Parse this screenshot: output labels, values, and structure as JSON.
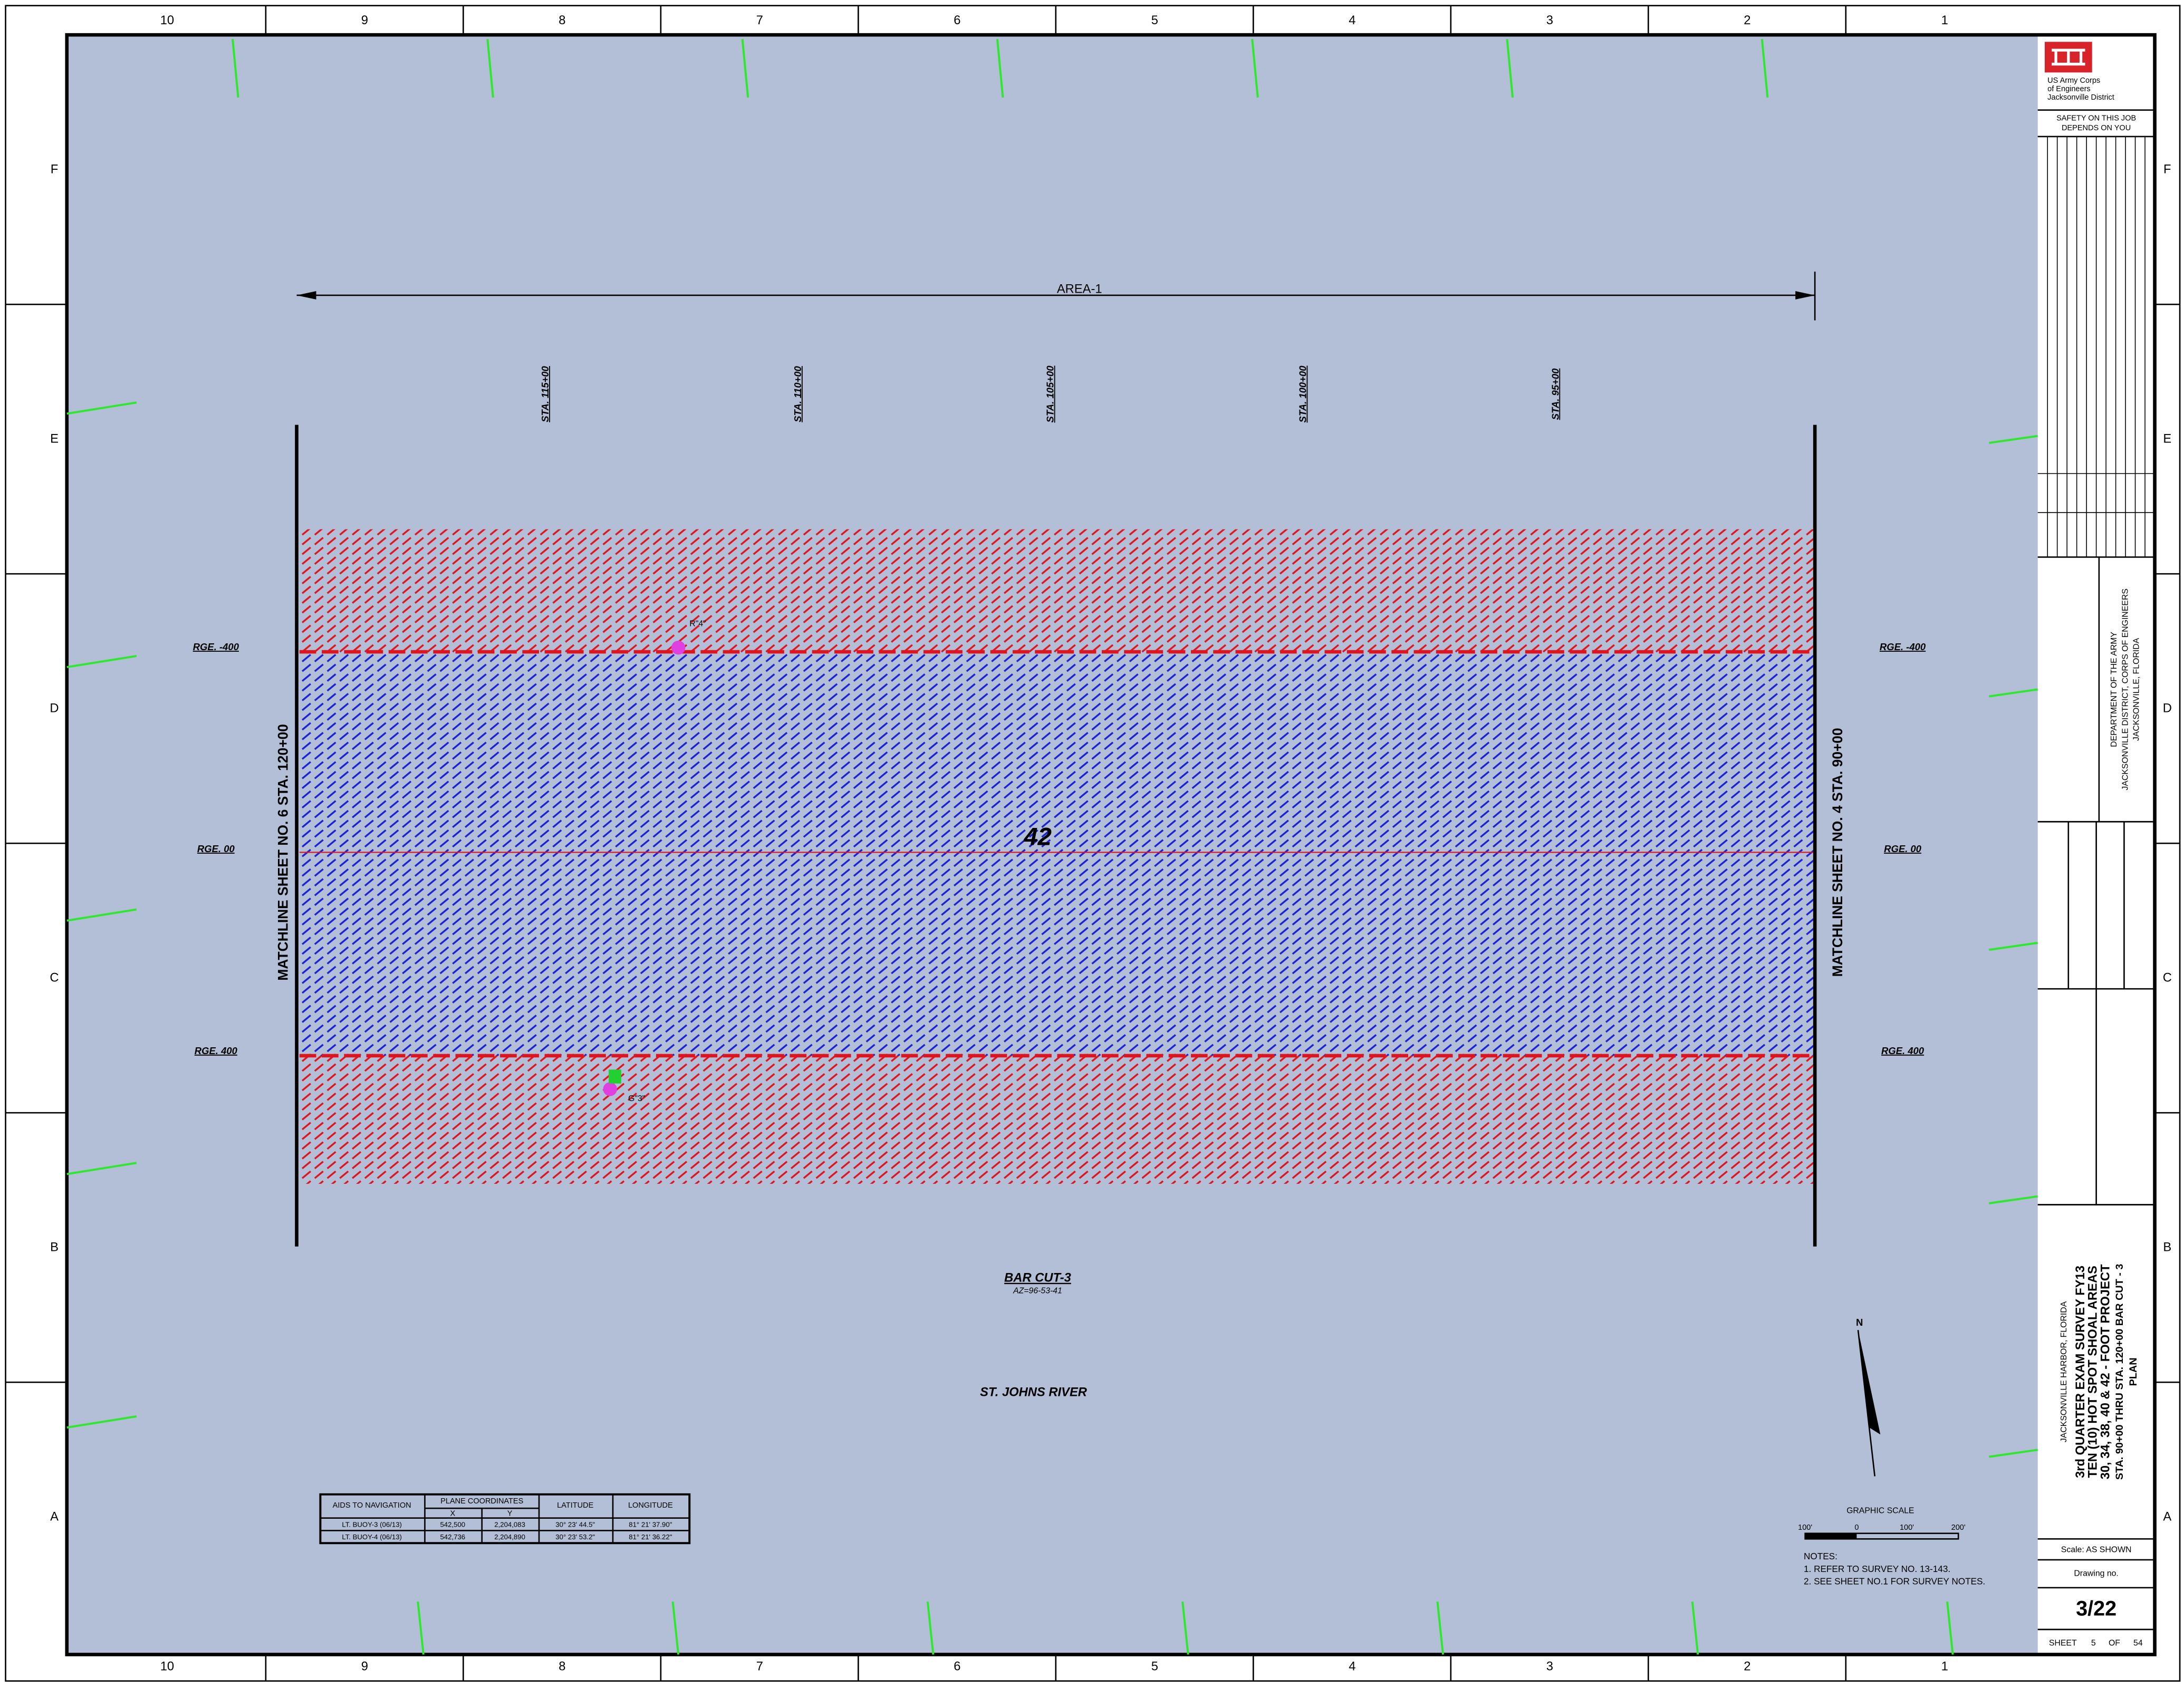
{
  "border": {
    "columns": [
      "10",
      "9",
      "8",
      "7",
      "6",
      "5",
      "4",
      "3",
      "2",
      "1"
    ],
    "rows": [
      "F",
      "E",
      "D",
      "C",
      "B",
      "A"
    ]
  },
  "plan": {
    "area": "AREA-1",
    "stations": [
      "STA. 115+00",
      "STA. 110+00",
      "STA. 105+00",
      "STA. 100+00",
      "STA. 95+00"
    ],
    "ranges": [
      "RGE. -400",
      "RGE. 00",
      "RGE. 400"
    ],
    "matchline_left": "MATCHLINE SHEET NO. 6 STA. 120+00",
    "matchline_right": "MATCHLINE SHEET NO. 4 STA. 90+00",
    "depth": "42",
    "cut": "BAR CUT-3",
    "azimuth": "AZ=96-53-41",
    "river": "ST. JOHNS RIVER",
    "buoy_red": "R\"4\"",
    "buoy_green": "G\"3\"",
    "north": "N",
    "scale_title": "GRAPHIC SCALE",
    "scale_ticks": [
      "100'",
      "0",
      "100'",
      "200'"
    ],
    "notes": [
      "NOTES:",
      "1. REFER TO SURVEY NO. 13-143.",
      "2. SEE SHEET NO.1 FOR SURVEY NOTES."
    ]
  },
  "table": {
    "header": [
      "AIDS TO NAVIGATION",
      "PLANE COORDINATES",
      "LATITUDE",
      "LONGITUDE"
    ],
    "subheader": [
      "X",
      "Y"
    ],
    "rows": [
      [
        "LT. BUOY-3 (06/13)",
        "542,500",
        "2,204,083",
        "30° 23' 44.5\"",
        "81° 21' 37.90\""
      ],
      [
        "LT. BUOY-4 (06/13)",
        "542,736",
        "2,204,890",
        "30° 23' 53.2\"",
        "81° 21' 36.22\""
      ]
    ]
  },
  "title_block": {
    "agency": [
      "US Army Corps",
      "of Engineers",
      "Jacksonville District"
    ],
    "safety": [
      "SAFETY ON THIS JOB",
      "DEPENDS ON YOU"
    ],
    "department": [
      "DEPARTMENT OF THE ARMY",
      "JACKSONVILLE DISTRICT, CORPS OF ENGINEERS",
      "JACKSONVILLE, FLORIDA"
    ],
    "project": [
      "JACKSONVILLE HARBOR, FLORIDA",
      "3rd QUARTER EXAM SURVEY FY13",
      "TEN (10) HOT SPOT SHOAL AREAS",
      "30, 34, 38, 40 & 42 - FOOT PROJECT",
      "STA. 90+00 THRU STA. 120+00 BAR CUT - 3",
      "PLAN"
    ],
    "scale": "Scale:  AS SHOWN",
    "drawing_label": "Drawing no.",
    "drawing_no": "3/22",
    "sheet": [
      "SHEET",
      "5",
      "OF",
      "54"
    ]
  }
}
